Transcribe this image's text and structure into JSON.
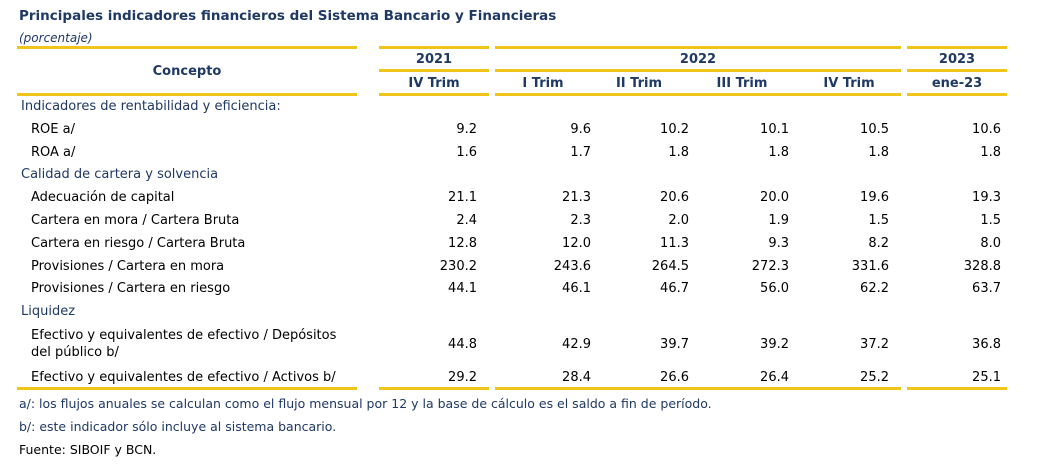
{
  "title": "Principales indicadores financieros del Sistema Bancario y Financieras",
  "unit": "(porcentaje)",
  "header": {
    "concept": "Concepto",
    "years": [
      "2021",
      "2022",
      "2023"
    ],
    "periods": [
      "IV Trim",
      "I Trim",
      "II Trim",
      "III Trim",
      "IV Trim",
      "ene-23"
    ]
  },
  "sections": [
    {
      "label": "Indicadores de rentabilidad y eficiencia:",
      "rows": [
        {
          "label": "ROE a/",
          "values": [
            "9.2",
            "9.6",
            "10.2",
            "10.1",
            "10.5",
            "10.6"
          ]
        },
        {
          "label": "ROA a/",
          "values": [
            "1.6",
            "1.7",
            "1.8",
            "1.8",
            "1.8",
            "1.8"
          ]
        }
      ]
    },
    {
      "label": "Calidad de cartera y solvencia",
      "rows": [
        {
          "label": "Adecuación de capital",
          "values": [
            "21.1",
            "21.3",
            "20.6",
            "20.0",
            "19.6",
            "19.3"
          ]
        },
        {
          "label": "Cartera en mora / Cartera Bruta",
          "values": [
            "2.4",
            "2.3",
            "2.0",
            "1.9",
            "1.5",
            "1.5"
          ]
        },
        {
          "label": "Cartera en riesgo / Cartera Bruta",
          "values": [
            "12.8",
            "12.0",
            "11.3",
            "9.3",
            "8.2",
            "8.0"
          ]
        },
        {
          "label": "Provisiones / Cartera en mora",
          "values": [
            "230.2",
            "243.6",
            "264.5",
            "272.3",
            "331.6",
            "328.8"
          ]
        },
        {
          "label": "Provisiones / Cartera en riesgo",
          "values": [
            "44.1",
            "46.1",
            "46.7",
            "56.0",
            "62.2",
            "63.7"
          ]
        }
      ]
    },
    {
      "label": "Liquidez",
      "rows": [
        {
          "label": "Efectivo y equivalentes de efectivo / Depósitos",
          "label2": "del público b/",
          "values": [
            "44.8",
            "42.9",
            "39.7",
            "39.2",
            "37.2",
            "36.8"
          ]
        },
        {
          "label": "Efectivo y equivalentes de efectivo / Activos b/",
          "values": [
            "29.2",
            "28.4",
            "26.6",
            "26.4",
            "25.2",
            "25.1"
          ]
        }
      ]
    }
  ],
  "notes": [
    "a/: los flujos anuales se calculan como el flujo mensual por 12 y la base de cálculo es el saldo a fin de período.",
    "b/: este indicador sólo incluye al sistema bancario."
  ],
  "source": "Fuente: SIBOIF y BCN.",
  "colors": {
    "accent": "#f0c419",
    "text_blue": "#1f3864"
  }
}
